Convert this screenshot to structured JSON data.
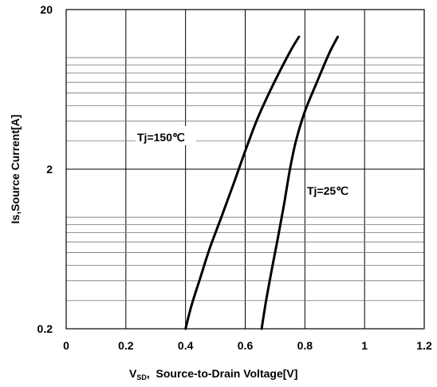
{
  "chart_data": {
    "type": "line",
    "xlabel_main": "V",
    "xlabel_sub": "SD",
    "xlabel_rest": ",  Source-to-Drain Voltage[V]",
    "ylabel": "Is,Source Current[A]",
    "xlim": [
      0,
      1.2
    ],
    "ylim": [
      0.2,
      20
    ],
    "yscale": "log",
    "grid": true,
    "x_ticks": [
      0,
      0.2,
      0.4,
      0.6,
      0.8,
      1,
      1.2
    ],
    "x_tick_labels": [
      "0",
      "0.2",
      "0.4",
      "0.6",
      "0.8",
      "1",
      "1.2"
    ],
    "y_ticks": [
      0.2,
      2,
      20
    ],
    "y_tick_labels": [
      "0.2",
      "2",
      "20"
    ],
    "series": [
      {
        "name": "Tj=150℃",
        "points": [
          [
            0.4,
            0.2
          ],
          [
            0.42,
            0.28
          ],
          [
            0.45,
            0.42
          ],
          [
            0.48,
            0.63
          ],
          [
            0.52,
            1.0
          ],
          [
            0.56,
            1.6
          ],
          [
            0.6,
            2.6
          ],
          [
            0.64,
            4.1
          ],
          [
            0.68,
            6.0
          ],
          [
            0.72,
            8.5
          ],
          [
            0.755,
            11.3
          ],
          [
            0.78,
            13.5
          ]
        ]
      },
      {
        "name": "Tj=25℃",
        "points": [
          [
            0.655,
            0.2
          ],
          [
            0.67,
            0.3
          ],
          [
            0.69,
            0.48
          ],
          [
            0.71,
            0.75
          ],
          [
            0.73,
            1.2
          ],
          [
            0.75,
            2.0
          ],
          [
            0.77,
            3.0
          ],
          [
            0.8,
            4.6
          ],
          [
            0.84,
            7.0
          ],
          [
            0.88,
            10.5
          ],
          [
            0.91,
            13.5
          ]
        ]
      }
    ]
  }
}
